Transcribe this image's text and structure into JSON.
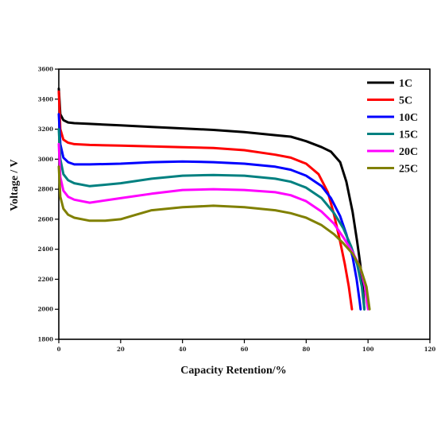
{
  "chart_data": {
    "type": "line",
    "xlabel": "Capacity Retention/%",
    "ylabel": "Voltage / V",
    "xlim": [
      0,
      120
    ],
    "ylim": [
      1800,
      3600
    ],
    "x_ticks": [
      0,
      20,
      40,
      60,
      80,
      100,
      120
    ],
    "y_ticks": [
      1800,
      2000,
      2200,
      2400,
      2600,
      2800,
      3000,
      3200,
      3400,
      3600
    ],
    "y_tick_labels": [
      "1800",
      "2000",
      "2200",
      "2400",
      "2600",
      "2800",
      "3000",
      "3200",
      "3400",
      "3600"
    ],
    "legend_position": "top-right",
    "grid": false,
    "series": [
      {
        "name": "1C",
        "color": "#000000",
        "points": [
          [
            0,
            3470
          ],
          [
            0.5,
            3300
          ],
          [
            1.5,
            3260
          ],
          [
            3,
            3245
          ],
          [
            5,
            3240
          ],
          [
            10,
            3235
          ],
          [
            20,
            3225
          ],
          [
            30,
            3215
          ],
          [
            40,
            3205
          ],
          [
            50,
            3195
          ],
          [
            60,
            3180
          ],
          [
            70,
            3160
          ],
          [
            75,
            3150
          ],
          [
            80,
            3120
          ],
          [
            85,
            3080
          ],
          [
            88,
            3050
          ],
          [
            91,
            2980
          ],
          [
            93,
            2850
          ],
          [
            95,
            2650
          ],
          [
            96.5,
            2450
          ],
          [
            97.5,
            2300
          ],
          [
            98.3,
            2150
          ],
          [
            98.8,
            2000
          ]
        ]
      },
      {
        "name": "5C",
        "color": "#ff0000",
        "points": [
          [
            0,
            3450
          ],
          [
            0.5,
            3200
          ],
          [
            1.5,
            3130
          ],
          [
            3,
            3110
          ],
          [
            5,
            3100
          ],
          [
            10,
            3095
          ],
          [
            20,
            3090
          ],
          [
            30,
            3085
          ],
          [
            40,
            3080
          ],
          [
            50,
            3075
          ],
          [
            60,
            3060
          ],
          [
            70,
            3030
          ],
          [
            75,
            3010
          ],
          [
            80,
            2970
          ],
          [
            84,
            2900
          ],
          [
            87,
            2780
          ],
          [
            89,
            2630
          ],
          [
            91,
            2450
          ],
          [
            92.5,
            2300
          ],
          [
            93.8,
            2150
          ],
          [
            94.8,
            2000
          ]
        ]
      },
      {
        "name": "10C",
        "color": "#0000ff",
        "points": [
          [
            0,
            3300
          ],
          [
            0.5,
            3100
          ],
          [
            1.5,
            3010
          ],
          [
            3,
            2980
          ],
          [
            5,
            2965
          ],
          [
            10,
            2965
          ],
          [
            20,
            2970
          ],
          [
            30,
            2980
          ],
          [
            40,
            2985
          ],
          [
            50,
            2980
          ],
          [
            60,
            2970
          ],
          [
            70,
            2950
          ],
          [
            75,
            2930
          ],
          [
            80,
            2890
          ],
          [
            85,
            2820
          ],
          [
            88,
            2740
          ],
          [
            91,
            2620
          ],
          [
            93,
            2500
          ],
          [
            95,
            2350
          ],
          [
            96.3,
            2200
          ],
          [
            97.3,
            2050
          ],
          [
            97.6,
            2000
          ]
        ]
      },
      {
        "name": "15C",
        "color": "#008080",
        "points": [
          [
            0,
            3200
          ],
          [
            0.5,
            3000
          ],
          [
            1.5,
            2900
          ],
          [
            3,
            2860
          ],
          [
            5,
            2840
          ],
          [
            10,
            2820
          ],
          [
            20,
            2840
          ],
          [
            30,
            2870
          ],
          [
            40,
            2890
          ],
          [
            50,
            2895
          ],
          [
            60,
            2890
          ],
          [
            70,
            2870
          ],
          [
            75,
            2850
          ],
          [
            80,
            2810
          ],
          [
            85,
            2740
          ],
          [
            89,
            2640
          ],
          [
            92,
            2540
          ],
          [
            94.5,
            2420
          ],
          [
            96.5,
            2300
          ],
          [
            98,
            2150
          ],
          [
            98.8,
            2000
          ]
        ]
      },
      {
        "name": "20C",
        "color": "#ff00ff",
        "points": [
          [
            0,
            3100
          ],
          [
            0.5,
            2880
          ],
          [
            1.5,
            2790
          ],
          [
            3,
            2750
          ],
          [
            5,
            2730
          ],
          [
            10,
            2710
          ],
          [
            20,
            2740
          ],
          [
            30,
            2770
          ],
          [
            40,
            2795
          ],
          [
            50,
            2800
          ],
          [
            60,
            2795
          ],
          [
            70,
            2780
          ],
          [
            75,
            2760
          ],
          [
            80,
            2720
          ],
          [
            85,
            2650
          ],
          [
            89,
            2570
          ],
          [
            92,
            2480
          ],
          [
            95,
            2380
          ],
          [
            97.5,
            2280
          ],
          [
            99,
            2150
          ],
          [
            100,
            2000
          ]
        ]
      },
      {
        "name": "25C",
        "color": "#808000",
        "points": [
          [
            0,
            2950
          ],
          [
            0.5,
            2750
          ],
          [
            1.5,
            2670
          ],
          [
            3,
            2630
          ],
          [
            5,
            2610
          ],
          [
            10,
            2590
          ],
          [
            15,
            2590
          ],
          [
            20,
            2600
          ],
          [
            25,
            2630
          ],
          [
            30,
            2660
          ],
          [
            40,
            2680
          ],
          [
            50,
            2690
          ],
          [
            60,
            2680
          ],
          [
            70,
            2660
          ],
          [
            75,
            2640
          ],
          [
            80,
            2610
          ],
          [
            85,
            2560
          ],
          [
            89,
            2500
          ],
          [
            92,
            2440
          ],
          [
            95,
            2370
          ],
          [
            97.5,
            2280
          ],
          [
            99.5,
            2150
          ],
          [
            100.5,
            2000
          ]
        ]
      }
    ]
  }
}
